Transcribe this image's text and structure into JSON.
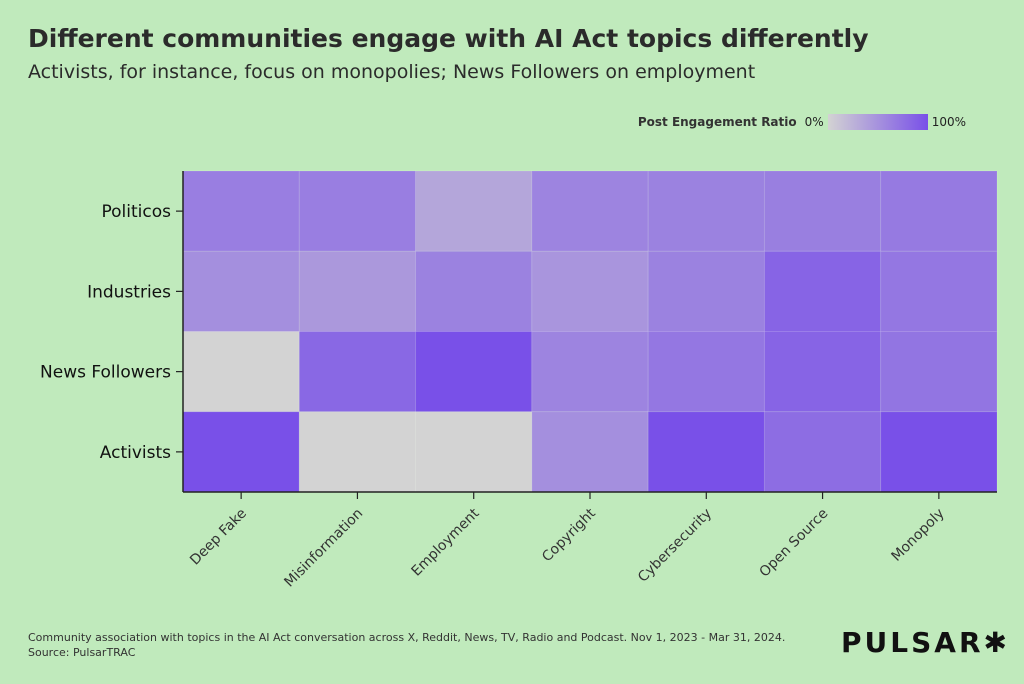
{
  "title": "Different communities engage with AI Act topics differently",
  "subtitle": "Activists, for instance, focus on monopolies; News Followers on employment",
  "footer": "Community association with topics in the AI Act conversation across X, Reddit, News, TV, Radio and Podcast. Nov 1, 2023 - Mar 31, 2024. Source: PulsarTRAC",
  "logo": "PULSAR✱",
  "chart_data": {
    "type": "heatmap",
    "legend": {
      "title": "Post Engagement Ratio",
      "min_label": "0%",
      "max_label": "100%",
      "placement": "top-right"
    },
    "colors": {
      "low": "#d3d3d3",
      "high": "#7950e8"
    },
    "x_categories": [
      "Deep Fake",
      "Misinformation",
      "Employment",
      "Copyright",
      "Cybersecurity",
      "Open Source",
      "Monopoly"
    ],
    "y_categories": [
      "Politicos",
      "Industries",
      "News Followers",
      "Activists"
    ],
    "values": [
      [
        65,
        65,
        34,
        60,
        62,
        64,
        68
      ],
      [
        52,
        45,
        62,
        47,
        62,
        85,
        70
      ],
      [
        0,
        82,
        100,
        60,
        70,
        85,
        72
      ],
      [
        100,
        0,
        0,
        52,
        100,
        78,
        100
      ]
    ],
    "value_range": [
      0,
      100
    ]
  }
}
